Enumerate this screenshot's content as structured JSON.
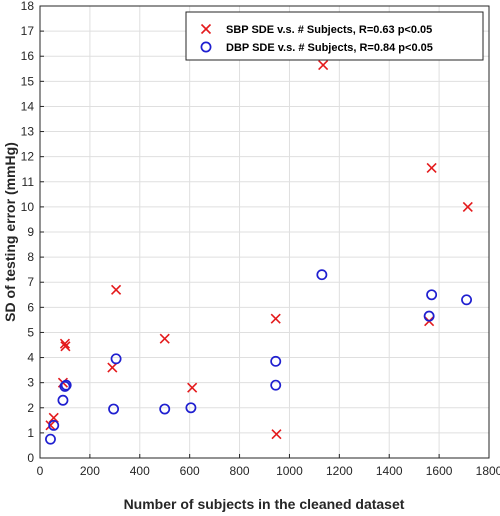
{
  "chart_data": {
    "type": "scatter",
    "xlabel": "Number of subjects in the cleaned dataset",
    "ylabel": "SD of testing error (mmHg)",
    "xlim": [
      0,
      1800
    ],
    "ylim": [
      0,
      18
    ],
    "x_ticks": [
      0,
      200,
      400,
      600,
      800,
      1000,
      1200,
      1400,
      1600,
      1800
    ],
    "y_ticks": [
      0,
      1,
      2,
      3,
      4,
      5,
      6,
      7,
      8,
      9,
      10,
      11,
      12,
      13,
      14,
      15,
      16,
      17,
      18
    ],
    "grid": true,
    "legend_position": "top-right",
    "series": [
      {
        "name": "SBP SDE v.s. # Subjects, R=0.63 p<0.05",
        "marker": "x",
        "color": "#e41a1c",
        "points": [
          {
            "x": 42,
            "y": 1.3
          },
          {
            "x": 55,
            "y": 1.6
          },
          {
            "x": 92,
            "y": 3.0
          },
          {
            "x": 100,
            "y": 4.55
          },
          {
            "x": 102,
            "y": 4.45
          },
          {
            "x": 290,
            "y": 3.6
          },
          {
            "x": 305,
            "y": 6.7
          },
          {
            "x": 500,
            "y": 4.75
          },
          {
            "x": 610,
            "y": 2.8
          },
          {
            "x": 945,
            "y": 5.55
          },
          {
            "x": 948,
            "y": 0.95
          },
          {
            "x": 1135,
            "y": 15.65
          },
          {
            "x": 1560,
            "y": 5.45
          },
          {
            "x": 1570,
            "y": 11.55
          },
          {
            "x": 1715,
            "y": 10.0
          }
        ]
      },
      {
        "name": "DBP SDE v.s. # Subjects, R=0.84 p<0.05",
        "marker": "o",
        "color": "#1f1fd0",
        "points": [
          {
            "x": 42,
            "y": 0.75
          },
          {
            "x": 55,
            "y": 1.3
          },
          {
            "x": 92,
            "y": 2.3
          },
          {
            "x": 100,
            "y": 2.85
          },
          {
            "x": 105,
            "y": 2.9
          },
          {
            "x": 295,
            "y": 1.95
          },
          {
            "x": 305,
            "y": 3.95
          },
          {
            "x": 500,
            "y": 1.95
          },
          {
            "x": 605,
            "y": 2.0
          },
          {
            "x": 945,
            "y": 3.85
          },
          {
            "x": 945,
            "y": 2.9
          },
          {
            "x": 1130,
            "y": 7.3
          },
          {
            "x": 1560,
            "y": 5.65
          },
          {
            "x": 1570,
            "y": 6.5
          },
          {
            "x": 1710,
            "y": 6.3
          }
        ]
      }
    ]
  }
}
